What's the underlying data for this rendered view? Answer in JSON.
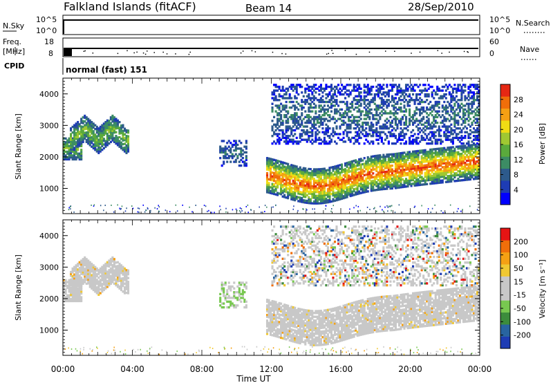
{
  "header": {
    "station": "Falkland Islands (fitACF)",
    "beam": "Beam 14",
    "date": "28/Sep/2010"
  },
  "strip_panels": {
    "nsky": {
      "label": "N.Sky",
      "ticks": [
        "10^5",
        "10^0"
      ],
      "right_ticks": [
        "10^5",
        "10^0"
      ],
      "right_label": "N.Search"
    },
    "freq": {
      "label_line1": "Freq.",
      "label_line2": "[MHz]",
      "ticks": [
        "18",
        "8"
      ],
      "right_ticks": [
        "60",
        "0"
      ],
      "right_label": "Nave"
    },
    "cpid": {
      "label": "CPID",
      "mode": "normal (fast) 151"
    }
  },
  "colors": {
    "power_scale": [
      "#0000ff",
      "#1e3cb4",
      "#2d5a8c",
      "#3c8c64",
      "#5aaa3c",
      "#a0c832",
      "#f0dc14",
      "#f5a014",
      "#f06e0a",
      "#e62814"
    ],
    "velocity_scale": [
      "#1e3cb4",
      "#2864a0",
      "#3c8c3c",
      "#78c850",
      "#c8c8c8",
      "#c8c8c8",
      "#f0c832",
      "#f5a014",
      "#f06e0a",
      "#e61414"
    ]
  },
  "chart_data": [
    {
      "type": "heatmap",
      "panel": "power",
      "xlabel": "",
      "ylabel": "Slant Range [km]",
      "yticks": [
        "4000",
        "3000",
        "2000",
        "1000"
      ],
      "ylim": [
        200,
        4500
      ],
      "xlim": [
        "00:00",
        "24:00"
      ],
      "colorbar": {
        "label": "Power [dB]",
        "ticks": [
          "28",
          "24",
          "20",
          "16",
          "12",
          "8",
          "4"
        ],
        "range": [
          0,
          30
        ]
      },
      "regions": [
        {
          "t0": 0.0,
          "t1": 1.0,
          "r0": 1900,
          "r1": 2600,
          "level": "mid"
        },
        {
          "t0": 0.4,
          "t1": 3.8,
          "r0": 2300,
          "r1": 3500,
          "level": "mid"
        },
        {
          "t0": 9.0,
          "t1": 10.5,
          "r0": 1700,
          "r1": 2500,
          "level": "low"
        },
        {
          "t0": 11.7,
          "t1": 24.0,
          "r0": 800,
          "r1": 2400,
          "level": "high"
        },
        {
          "t0": 12.0,
          "t1": 24.0,
          "r0": 2400,
          "r1": 4300,
          "level": "low"
        }
      ]
    },
    {
      "type": "heatmap",
      "panel": "velocity",
      "xlabel": "Time UT",
      "ylabel": "Slant Range [km]",
      "yticks": [
        "4000",
        "3000",
        "2000",
        "1000"
      ],
      "ylim": [
        200,
        4500
      ],
      "xticks": [
        "00:00",
        "04:00",
        "08:00",
        "12:00",
        "16:00",
        "20:00",
        "00:00"
      ],
      "colorbar": {
        "label": "Velocity [m s⁻¹]",
        "ticks": [
          "200",
          "100",
          "50",
          "15",
          "-15",
          "-50",
          "-100",
          "-200"
        ],
        "range": [
          -250,
          250
        ]
      }
    }
  ]
}
